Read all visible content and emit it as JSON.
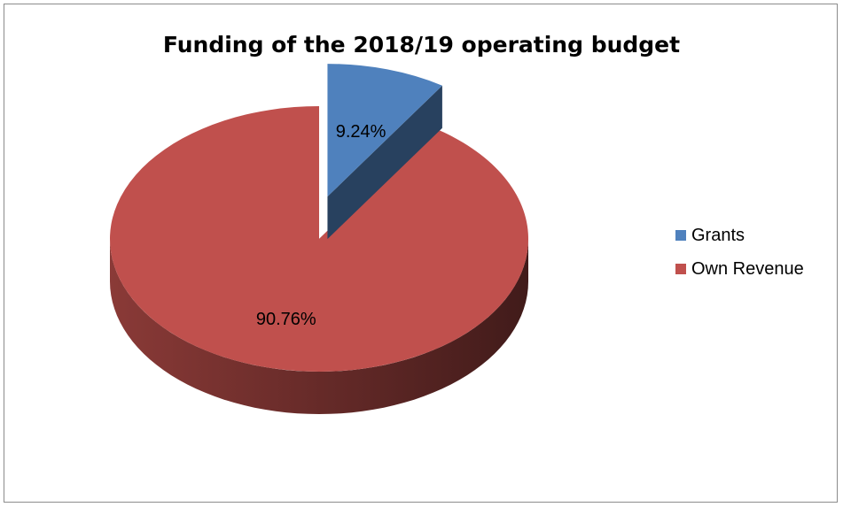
{
  "chart_data": {
    "type": "pie",
    "title": "Funding of the 2018/19 operating budget",
    "categories": [
      "Grants",
      "Own Revenue"
    ],
    "values": [
      9.24,
      90.76
    ],
    "data_labels": [
      "9.24%",
      "90.76%"
    ],
    "colors": [
      "#4f81bd",
      "#c0504d"
    ],
    "legend_position": "right",
    "style": "3d-exploded"
  }
}
